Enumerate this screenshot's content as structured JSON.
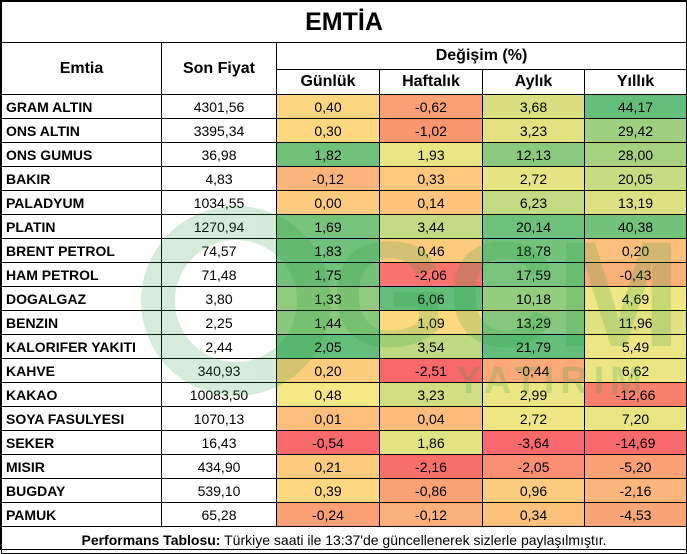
{
  "title": "EMTİA",
  "headers": {
    "commodity": "Emtia",
    "last_price": "Son Fiyat",
    "change_group": "Değişim (%)",
    "daily": "Günlük",
    "weekly": "Haftalık",
    "monthly": "Aylık",
    "yearly": "Yıllık"
  },
  "rows": [
    {
      "name": "GRAM ALTIN",
      "price": "4301,56",
      "daily": "0,40",
      "weekly": "-0,62",
      "monthly": "3,68",
      "yearly": "44,17",
      "colors": [
        "#fbd57f",
        "#f9a075",
        "#d9df81",
        "#63be7b"
      ]
    },
    {
      "name": "ONS ALTIN",
      "price": "3395,34",
      "daily": "0,30",
      "weekly": "-1,02",
      "monthly": "3,23",
      "yearly": "29,42",
      "colors": [
        "#fed880",
        "#f8966f",
        "#e2e283",
        "#9fd07f"
      ]
    },
    {
      "name": "ONS GUMUS",
      "price": "36,98",
      "daily": "1,82",
      "weekly": "1,93",
      "monthly": "12,13",
      "yearly": "28,00",
      "colors": [
        "#70c27b",
        "#e9e583",
        "#8bca7e",
        "#a6d27f"
      ]
    },
    {
      "name": "BAKIR",
      "price": "4,83",
      "daily": "-0,12",
      "weekly": "0,33",
      "monthly": "2,72",
      "yearly": "20,05",
      "colors": [
        "#fbb479",
        "#fdc77d",
        "#e6e483",
        "#c7dc81"
      ]
    },
    {
      "name": "PALADYUM",
      "price": "1034,55",
      "daily": "0,00",
      "weekly": "0,14",
      "monthly": "6,23",
      "yearly": "13,19",
      "colors": [
        "#fdcb7e",
        "#fdc47c",
        "#c2da81",
        "#dde082"
      ]
    },
    {
      "name": "PLATIN",
      "price": "1270,94",
      "daily": "1,69",
      "weekly": "3,44",
      "monthly": "20,14",
      "yearly": "40,38",
      "colors": [
        "#76c37c",
        "#c2da81",
        "#6ec17b",
        "#74c37c"
      ]
    },
    {
      "name": "BRENT PETROL",
      "price": "74,57",
      "daily": "1,83",
      "weekly": "0,46",
      "monthly": "18,78",
      "yearly": "0,20",
      "colors": [
        "#6fc17b",
        "#fccb7e",
        "#74c37c",
        "#fcbf7b"
      ]
    },
    {
      "name": "HAM PETROL",
      "price": "71,48",
      "daily": "1,75",
      "weekly": "-2,06",
      "monthly": "17,59",
      "yearly": "-0,43",
      "colors": [
        "#73c27b",
        "#f8736b",
        "#78c47c",
        "#fbb078"
      ]
    },
    {
      "name": "DOGALGAZ",
      "price": "3,80",
      "daily": "1,33",
      "weekly": "6,06",
      "monthly": "10,18",
      "yearly": "4,69",
      "colors": [
        "#90cb7e",
        "#63be7b",
        "#94cd7e",
        "#f1e784"
      ]
    },
    {
      "name": "BENZIN",
      "price": "2,25",
      "daily": "1,44",
      "weekly": "1,09",
      "monthly": "13,29",
      "yearly": "11,96",
      "colors": [
        "#88c87d",
        "#ffd980",
        "#85c87d",
        "#e1e183"
      ]
    },
    {
      "name": "KALORIFER YAKITI",
      "price": "2,44",
      "daily": "2,05",
      "weekly": "3,54",
      "monthly": "21,79",
      "yearly": "5,49",
      "colors": [
        "#63be7b",
        "#bfd981",
        "#63be7b",
        "#eee684"
      ]
    },
    {
      "name": "KAHVE",
      "price": "340,93",
      "daily": "0,20",
      "weekly": "-2,51",
      "monthly": "-0,44",
      "yearly": "6,62",
      "colors": [
        "#fdcd7e",
        "#f8696b",
        "#fbaa77",
        "#ebe583"
      ]
    },
    {
      "name": "KAKAO",
      "price": "10083,50",
      "daily": "0,48",
      "weekly": "3,23",
      "monthly": "2,99",
      "yearly": "-12,66",
      "colors": [
        "#f6e884",
        "#d0dd81",
        "#ece583",
        "#f8806d"
      ]
    },
    {
      "name": "SOYA FASULYESI",
      "price": "1070,13",
      "daily": "0,01",
      "weekly": "0,04",
      "monthly": "2,72",
      "yearly": "7,20",
      "colors": [
        "#fbbe7b",
        "#fbbc7b",
        "#f0e784",
        "#eae583"
      ]
    },
    {
      "name": "SEKER",
      "price": "16,43",
      "daily": "-0,54",
      "weekly": "1,86",
      "monthly": "-3,64",
      "yearly": "-14,69",
      "colors": [
        "#f8696b",
        "#e2e383",
        "#f8696b",
        "#f8696b"
      ]
    },
    {
      "name": "MISIR",
      "price": "434,90",
      "daily": "0,21",
      "weekly": "-2,16",
      "monthly": "-2,05",
      "yearly": "-5,20",
      "colors": [
        "#fdcb7e",
        "#f86f6b",
        "#f98e72",
        "#f9a075"
      ]
    },
    {
      "name": "BUGDAY",
      "price": "539,10",
      "daily": "0,39",
      "weekly": "-0,86",
      "monthly": "0,96",
      "yearly": "-2,16",
      "colors": [
        "#fed880",
        "#f9a374",
        "#fccc7e",
        "#fbb479"
      ]
    },
    {
      "name": "PAMUK",
      "price": "65,28",
      "daily": "-0,24",
      "weekly": "-0,12",
      "monthly": "0,34",
      "yearly": "-4,53",
      "colors": [
        "#f9a075",
        "#fbb078",
        "#fcc27c",
        "#f9a676"
      ]
    }
  ],
  "footer": {
    "label": "Performans Tablosu:",
    "text": " Türkiye saati ile 13:37'de güncellenerek sizlerle paylaşılmıştır."
  },
  "watermark": {
    "main": "GCM",
    "sub": "YATIRIM",
    "color": "#2f9e44"
  }
}
